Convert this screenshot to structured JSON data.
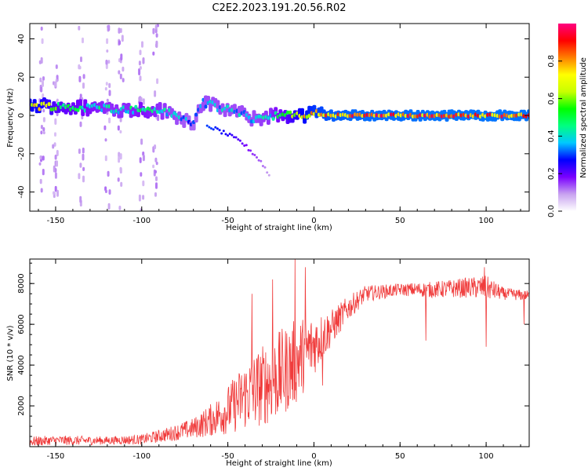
{
  "title": "C2E2.2023.191.20.56.R02",
  "chart_data": [
    {
      "type": "heatmap",
      "xlabel": "Height of straight line (km)",
      "ylabel": "Frequency (Hz)",
      "xlim": [
        -165,
        125
      ],
      "ylim": [
        -50,
        48
      ],
      "x_ticks": [
        -150,
        -100,
        -50,
        0,
        50,
        100
      ],
      "y_ticks": [
        -40,
        -20,
        0,
        20,
        40
      ],
      "colorbar": {
        "label": "Normalized spectral amplitude",
        "range": [
          0,
          1
        ],
        "ticks": [
          "0.0",
          "0.2",
          "0.4",
          "0.6",
          "0.8"
        ],
        "colors": [
          "#ffffff",
          "#c8a2f0",
          "#7a00ff",
          "#0000ff",
          "#00c8ff",
          "#00ff80",
          "#00ff00",
          "#c8ff00",
          "#ffff00",
          "#ff8000",
          "#ff0000",
          "#ff0080"
        ]
      },
      "ridge": [
        {
          "x": -160,
          "y": 5,
          "a": 0.75
        },
        {
          "x": -150,
          "y": 5,
          "a": 0.6
        },
        {
          "x": -140,
          "y": 4,
          "a": 0.55
        },
        {
          "x": -130,
          "y": 4,
          "a": 0.5
        },
        {
          "x": -120,
          "y": 4,
          "a": 0.45
        },
        {
          "x": -110,
          "y": 3,
          "a": 0.45
        },
        {
          "x": -100,
          "y": 3,
          "a": 0.5
        },
        {
          "x": -90,
          "y": 3,
          "a": 0.45
        },
        {
          "x": -80,
          "y": 0,
          "a": 0.4
        },
        {
          "x": -70,
          "y": -4,
          "a": 0.35
        },
        {
          "x": -65,
          "y": 7,
          "a": 0.4
        },
        {
          "x": -55,
          "y": 4,
          "a": 0.4
        },
        {
          "x": -45,
          "y": 2,
          "a": 0.4
        },
        {
          "x": -35,
          "y": -2,
          "a": 0.4
        },
        {
          "x": -25,
          "y": 0,
          "a": 0.45
        },
        {
          "x": -15,
          "y": 0,
          "a": 0.6
        },
        {
          "x": -5,
          "y": 0,
          "a": 0.8
        },
        {
          "x": 0,
          "y": 1,
          "a": 0.85
        },
        {
          "x": 10,
          "y": 0,
          "a": 0.9
        },
        {
          "x": 30,
          "y": 0,
          "a": 0.92
        },
        {
          "x": 50,
          "y": 0,
          "a": 0.92
        },
        {
          "x": 75,
          "y": 0,
          "a": 0.93
        },
        {
          "x": 100,
          "y": 0,
          "a": 0.93
        },
        {
          "x": 125,
          "y": 0,
          "a": 0.93
        }
      ],
      "branches": [
        {
          "x": -60,
          "y": -6,
          "a": 0.3
        },
        {
          "x": -50,
          "y": -10,
          "a": 0.25
        },
        {
          "x": -42,
          "y": -14,
          "a": 0.2
        },
        {
          "x": -35,
          "y": -20,
          "a": 0.15
        },
        {
          "x": -30,
          "y": -25,
          "a": 0.12
        },
        {
          "x": -25,
          "y": -33,
          "a": 0.08
        }
      ]
    },
    {
      "type": "line",
      "xlabel": "Height of straight line (km)",
      "ylabel": "SNR (10 * v/v)",
      "xlim": [
        -165,
        125
      ],
      "ylim": [
        0,
        9200
      ],
      "x_ticks": [
        -150,
        -100,
        -50,
        0,
        50,
        100
      ],
      "y_ticks": [
        2000,
        4000,
        6000,
        8000
      ],
      "color": "#f03c3c",
      "envelope": [
        {
          "x": -165,
          "base": 250,
          "amp": 250
        },
        {
          "x": -150,
          "base": 300,
          "amp": 250
        },
        {
          "x": -120,
          "base": 300,
          "amp": 200
        },
        {
          "x": -100,
          "base": 350,
          "amp": 250
        },
        {
          "x": -85,
          "base": 600,
          "amp": 350
        },
        {
          "x": -70,
          "base": 900,
          "amp": 500
        },
        {
          "x": -60,
          "base": 1300,
          "amp": 800
        },
        {
          "x": -50,
          "base": 1800,
          "amp": 1200
        },
        {
          "x": -40,
          "base": 2500,
          "amp": 1700
        },
        {
          "x": -30,
          "base": 3000,
          "amp": 2000
        },
        {
          "x": -20,
          "base": 3500,
          "amp": 2200
        },
        {
          "x": -10,
          "base": 4200,
          "amp": 2100
        },
        {
          "x": 0,
          "base": 5000,
          "amp": 1500
        },
        {
          "x": 10,
          "base": 5800,
          "amp": 900
        },
        {
          "x": 20,
          "base": 6800,
          "amp": 600
        },
        {
          "x": 30,
          "base": 7500,
          "amp": 400
        },
        {
          "x": 50,
          "base": 7700,
          "amp": 300
        },
        {
          "x": 70,
          "base": 7700,
          "amp": 400
        },
        {
          "x": 90,
          "base": 7800,
          "amp": 500
        },
        {
          "x": 100,
          "base": 7800,
          "amp": 600
        },
        {
          "x": 110,
          "base": 7500,
          "amp": 300
        },
        {
          "x": 125,
          "base": 7400,
          "amp": 250
        }
      ],
      "spikes": [
        {
          "x": -36,
          "y": 7500
        },
        {
          "x": -24,
          "y": 8200
        },
        {
          "x": -11,
          "y": 9200
        },
        {
          "x": -5,
          "y": 8800
        },
        {
          "x": 5,
          "y": 3000
        },
        {
          "x": 65,
          "y": 5200
        },
        {
          "x": 100,
          "y": 4900
        },
        {
          "x": 99,
          "y": 8800
        },
        {
          "x": 122,
          "y": 6000
        }
      ]
    }
  ]
}
